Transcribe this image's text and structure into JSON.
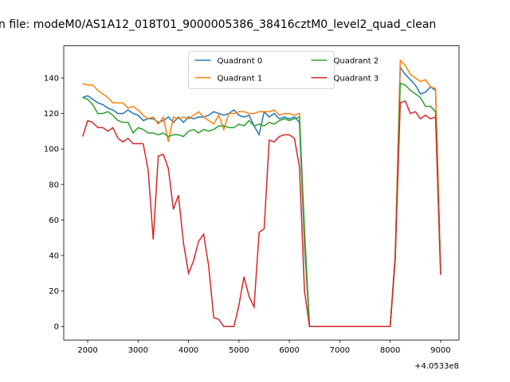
{
  "chart_data": {
    "type": "line",
    "title": "n file: modeM0/AS1A12_018T01_9000005386_38416cztM0_level2_quad_clean",
    "x_offset_label": "+4.0533e8",
    "x": [
      1900,
      2000,
      2100,
      2200,
      2300,
      2400,
      2500,
      2600,
      2700,
      2800,
      2900,
      3000,
      3100,
      3200,
      3300,
      3400,
      3500,
      3600,
      3700,
      3800,
      3900,
      4000,
      4100,
      4200,
      4300,
      4400,
      4500,
      4600,
      4700,
      4800,
      4900,
      5000,
      5100,
      5200,
      5300,
      5400,
      5500,
      5600,
      5700,
      5800,
      5900,
      6000,
      6100,
      6200,
      6300,
      6400,
      6500,
      6600,
      6700,
      6800,
      6900,
      7000,
      7100,
      7200,
      7300,
      7400,
      7500,
      7600,
      7700,
      7800,
      7900,
      8000,
      8100,
      8200,
      8300,
      8400,
      8500,
      8600,
      8700,
      8800,
      8900,
      9000
    ],
    "series": [
      {
        "name": "Quadrant 0",
        "color": "#1f77b4",
        "values": [
          129,
          130,
          128,
          126,
          125,
          123,
          122,
          120,
          120,
          122,
          120,
          119,
          116,
          117,
          117,
          115,
          116,
          118,
          115,
          118,
          115,
          118,
          117,
          118,
          118,
          119,
          121,
          120,
          119,
          120,
          122,
          119,
          118,
          119,
          113,
          108,
          121,
          118,
          120,
          117,
          118,
          117,
          118,
          115,
          45,
          0,
          0,
          0,
          0,
          0,
          0,
          0,
          0,
          0,
          0,
          0,
          0,
          0,
          0,
          0,
          0,
          0,
          40,
          146,
          142,
          139,
          136,
          131,
          132,
          135,
          133,
          32
        ]
      },
      {
        "name": "Quadrant 1",
        "color": "#ff7f0e",
        "values": [
          137,
          136,
          136,
          133,
          131,
          129,
          126,
          126,
          126,
          123,
          124,
          122,
          119,
          117,
          118,
          114,
          118,
          104,
          118,
          117,
          118,
          117,
          119,
          121,
          118,
          116,
          114,
          119,
          111,
          120,
          120,
          121,
          121,
          120,
          120,
          121,
          121,
          121,
          122,
          119,
          120,
          120,
          119,
          120,
          50,
          0,
          0,
          0,
          0,
          0,
          0,
          0,
          0,
          0,
          0,
          0,
          0,
          0,
          0,
          0,
          0,
          0,
          40,
          150,
          147,
          142,
          140,
          138,
          139,
          135,
          134,
          33
        ]
      },
      {
        "name": "Quadrant 2",
        "color": "#2ca02c",
        "values": [
          129,
          128,
          125,
          120,
          120,
          121,
          119,
          116,
          115,
          115,
          109,
          112,
          111,
          109,
          109,
          108,
          109,
          107,
          108,
          108,
          107,
          110,
          111,
          109,
          111,
          110,
          111,
          113,
          113,
          112,
          112,
          114,
          113,
          116,
          113,
          114,
          113,
          115,
          114,
          116,
          117,
          116,
          117,
          118,
          55,
          0,
          0,
          0,
          0,
          0,
          0,
          0,
          0,
          0,
          0,
          0,
          0,
          0,
          0,
          0,
          0,
          0,
          38,
          137,
          136,
          133,
          131,
          129,
          124,
          124,
          121,
          30
        ]
      },
      {
        "name": "Quadrant 3",
        "color": "#d62728",
        "values": [
          107,
          116,
          115,
          112,
          112,
          110,
          112,
          106,
          104,
          106,
          103,
          103,
          103,
          88,
          49,
          96,
          97,
          89,
          66,
          74,
          47,
          30,
          37,
          48,
          52,
          34,
          5,
          4,
          0,
          0,
          0,
          12,
          28,
          17,
          11,
          53,
          55,
          105,
          104,
          107,
          108,
          108,
          106,
          90,
          20,
          0,
          0,
          0,
          0,
          0,
          0,
          0,
          0,
          0,
          0,
          0,
          0,
          0,
          0,
          0,
          0,
          0,
          38,
          126,
          127,
          120,
          121,
          117,
          119,
          117,
          118,
          29
        ]
      }
    ],
    "xlim": [
      1525,
      9365
    ],
    "xticks": [
      2000,
      3000,
      4000,
      5000,
      6000,
      7000,
      8000,
      9000
    ],
    "ylim": [
      -7.6,
      158.1
    ],
    "yticks": [
      0,
      20,
      40,
      60,
      80,
      100,
      120,
      140
    ],
    "legend": "upper center",
    "legend_columns": 2
  }
}
